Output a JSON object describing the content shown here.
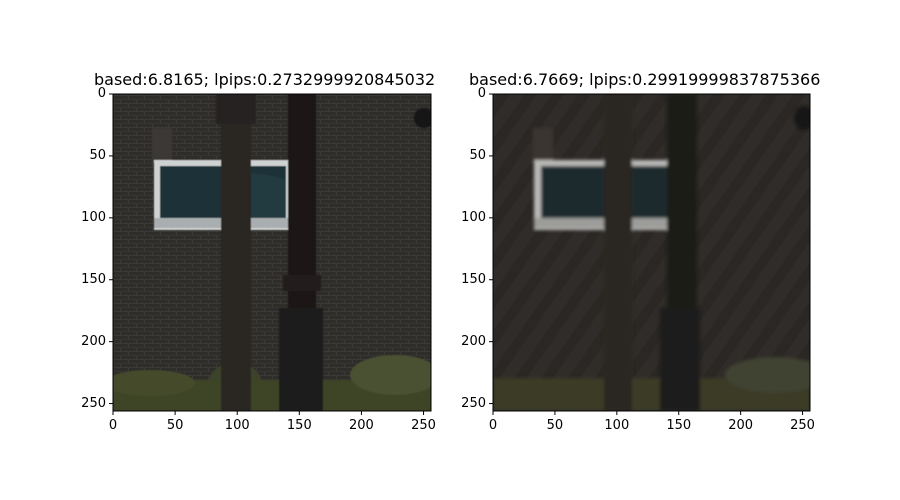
{
  "chart_data": [
    {
      "type": "image",
      "title": "based:6.8165; lpips:0.2732999920845032",
      "xlim": [
        0,
        256
      ],
      "ylim": [
        256,
        0
      ],
      "xticks": [
        "0",
        "50",
        "100",
        "150",
        "200",
        "250"
      ],
      "yticks": [
        "0",
        "50",
        "100",
        "150",
        "200",
        "250"
      ],
      "image_description": "dark brick wall with window, tree trunk and lamp post, hedge at bottom",
      "colors": {
        "wall": "#2e2d2a",
        "glass": "#1c3037",
        "frame": "#cfd2d3",
        "trunk": "#2a2522",
        "post": "#1a1818",
        "hedge": "#3e4527"
      }
    },
    {
      "type": "image",
      "title": "based:6.7669; lpips:0.29919999837875366",
      "xlim": [
        0,
        256
      ],
      "ylim": [
        256,
        0
      ],
      "xticks": [
        "0",
        "50",
        "100",
        "150",
        "200",
        "250"
      ],
      "yticks": [
        "0",
        "50",
        "100",
        "150",
        "200",
        "250"
      ],
      "image_description": "blurred dark wall with window, tree trunk and lamp post, hedge at bottom",
      "colors": {
        "wall": "#302c29",
        "glass": "#1c2c2f",
        "frame": "#b8b8b6",
        "trunk": "#2b2623",
        "post": "#1c1a19",
        "hedge": "#3a3a28"
      }
    }
  ]
}
